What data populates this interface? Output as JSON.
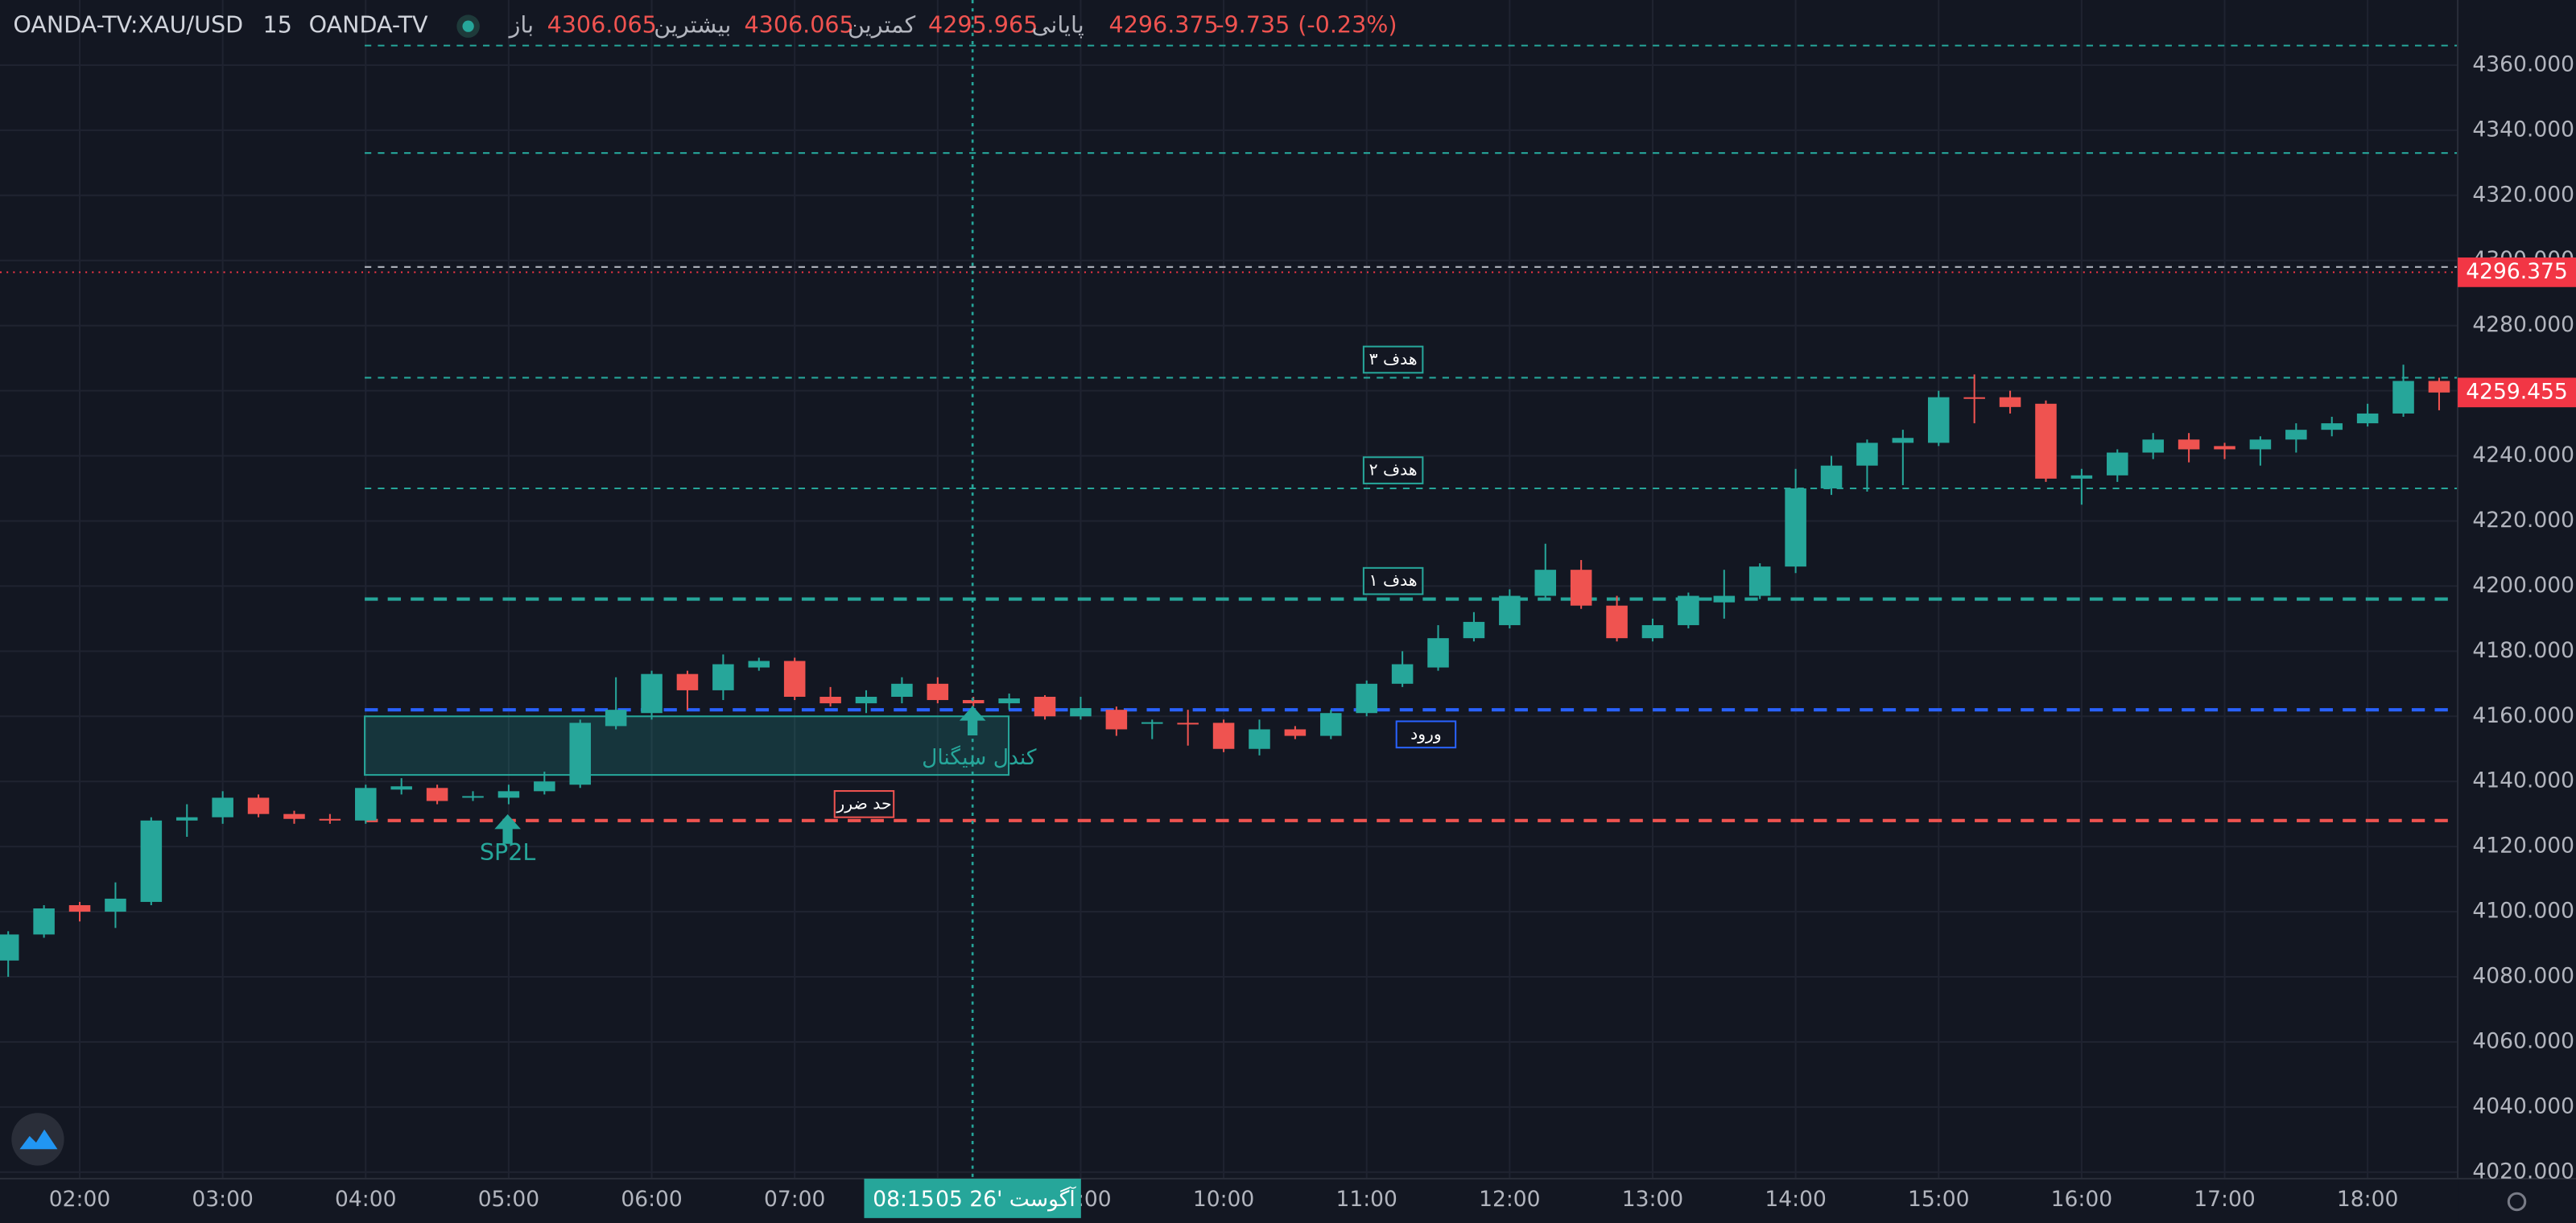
{
  "chart_data": {
    "type": "candlestick",
    "symbol": "OANDA-TV:XAU/USD",
    "interval": "15",
    "source": "OANDA-TV",
    "fields": [
      {
        "label": "باز",
        "value": 4306.065
      },
      {
        "label": "بیشترین",
        "value": 4306.065
      },
      {
        "label": "کمترین",
        "value": 4295.965
      },
      {
        "label": "پایانی",
        "value": 4296.375
      }
    ],
    "change": -9.735,
    "change_pct": {
      "value": -0.23,
      "label": "(-0.23%)"
    },
    "up_color": "#26a69a",
    "down_color": "#ef5350",
    "categories": [
      null,
      null,
      "02:00",
      null,
      null,
      null,
      "03:00",
      null,
      null,
      null,
      "04:00",
      null,
      null,
      null,
      "05:00",
      null,
      null,
      null,
      "06:00",
      null,
      null,
      null,
      "07:00",
      null,
      null,
      null,
      "08:00",
      null,
      null,
      null,
      "09:00",
      null,
      null,
      null,
      "10:00",
      null,
      null,
      null,
      "11:00",
      null,
      null,
      null,
      "12:00",
      null,
      null,
      null,
      "13:00",
      null,
      null,
      null,
      "14:00",
      null,
      null,
      null,
      "15:00",
      null,
      null,
      null,
      "16:00",
      null,
      null,
      null,
      "17:00",
      null,
      null,
      null,
      "18:00",
      null,
      null
    ],
    "open": [
      4085,
      4093,
      4102,
      4100,
      4103,
      4128,
      4129,
      4135,
      4130,
      4128.5,
      4128,
      4137.5,
      4138,
      4135,
      4135,
      4137,
      4139,
      4157,
      4161,
      4173,
      4168,
      4175,
      4177,
      4166,
      4164,
      4166,
      4170,
      4165,
      4164,
      4166,
      4160,
      4162,
      4158,
      4158,
      4158,
      4150,
      4156,
      4154,
      4161,
      4170,
      4175,
      4184,
      4188,
      4197,
      4205,
      4194,
      4184,
      4188,
      4195,
      4197,
      4206,
      4230,
      4237,
      4244,
      4244,
      4258,
      4258,
      4256,
      4233,
      4234,
      4241,
      4245,
      4243,
      4242,
      4245,
      4248,
      4250,
      4253,
      4263
    ],
    "high": [
      4094,
      4102,
      4103,
      4109,
      4129,
      4133,
      4137,
      4136,
      4131,
      4130,
      4139,
      4141,
      4139,
      4137,
      4139,
      4143,
      4159,
      4172,
      4174,
      4174,
      4179,
      4178,
      4178,
      4169,
      4168,
      4172,
      4172,
      4166,
      4167,
      4166.5,
      4166,
      4163,
      4159,
      4162,
      4159,
      4159,
      4157,
      4162,
      4171,
      4180,
      4188,
      4192,
      4199,
      4213,
      4208,
      4197,
      4190,
      4198,
      4205,
      4207,
      4236,
      4240,
      4245,
      4248,
      4260,
      4265,
      4260,
      4257,
      4236,
      4242,
      4247,
      4247,
      4244,
      4246,
      4250,
      4252,
      4256,
      4268,
      4264
    ],
    "low": [
      4080,
      4092,
      4097,
      4095,
      4102,
      4123,
      4127,
      4129,
      4127,
      4127,
      4127,
      4136,
      4133,
      4134,
      4133,
      4136,
      4138,
      4156,
      4159,
      4162,
      4165,
      4174,
      4165,
      4163,
      4161,
      4164,
      4164,
      4163,
      4162,
      4159,
      4159,
      4154,
      4153,
      4151,
      4149,
      4148,
      4153,
      4153,
      4160,
      4169,
      4174,
      4183,
      4187,
      4196,
      4193,
      4183,
      4183,
      4187,
      4190,
      4196,
      4204,
      4228,
      4229,
      4231,
      4243,
      4250,
      4253,
      4232,
      4225,
      4232,
      4239,
      4238,
      4239,
      4237,
      4241,
      4246,
      4249,
      4252,
      4254
    ],
    "close": [
      4093,
      4101,
      4100,
      4104,
      4128,
      4129,
      4135,
      4130,
      4128.5,
      4128.2,
      4138,
      4138.5,
      4134,
      4135.5,
      4137,
      4140,
      4158,
      4162,
      4173,
      4168,
      4176,
      4177,
      4166,
      4164,
      4166,
      4170,
      4165,
      4164,
      4165.5,
      4160,
      4162.5,
      4156,
      4158.2,
      4157.5,
      4150,
      4156,
      4154,
      4161,
      4170,
      4176,
      4184,
      4189,
      4197,
      4205,
      4194,
      4184,
      4188,
      4197,
      4197,
      4206,
      4230,
      4237,
      4244,
      4245.5,
      4258,
      4257.5,
      4255,
      4233,
      4234,
      4241,
      4245,
      4242,
      4242,
      4245,
      4248,
      4250,
      4253,
      4263,
      4259.455
    ],
    "ylim": [
      4018,
      4380
    ],
    "yticks": [
      {
        "value": 4020,
        "label": "4020.000"
      },
      {
        "value": 4040,
        "label": "4040.000"
      },
      {
        "value": 4060,
        "label": "4060.000"
      },
      {
        "value": 4080,
        "label": "4080.000"
      },
      {
        "value": 4100,
        "label": "4100.000"
      },
      {
        "value": 4120,
        "label": "4120.000"
      },
      {
        "value": 4140,
        "label": "4140.000"
      },
      {
        "value": 4160,
        "label": "4160.000"
      },
      {
        "value": 4180,
        "label": "4180.000"
      },
      {
        "value": 4200,
        "label": "4200.000"
      },
      {
        "value": 4220,
        "label": "4220.000"
      },
      {
        "value": 4240,
        "label": "4240.000"
      },
      {
        "value": 4260,
        "label": "4260.000"
      },
      {
        "value": 4280,
        "label": "4280.000"
      },
      {
        "value": 4300,
        "label": "4300.000"
      },
      {
        "value": 4320,
        "label": "4320.000"
      },
      {
        "value": 4340,
        "label": "4340.000"
      },
      {
        "value": 4360,
        "label": "4360.000"
      }
    ],
    "grid": true,
    "levels": [
      {
        "value": 4366,
        "color": "#26a69a"
      },
      {
        "value": 4333,
        "color": "#26a69a"
      },
      {
        "value": 4298,
        "color": "#b2b5be"
      },
      {
        "value": 4264,
        "color": "#26a69a",
        "label": "هدف ۳"
      },
      {
        "value": 4230,
        "color": "#26a69a",
        "label": "هدف ۲"
      },
      {
        "value": 4196,
        "color": "#26a69a",
        "label": "هدف ۱"
      },
      {
        "value": 4162,
        "color": "#2962ff",
        "label": "ورود"
      },
      {
        "value": 4128,
        "color": "#ef5350",
        "label": "حد ضرر"
      }
    ],
    "zone": {
      "top": 4160,
      "bottom": 4142,
      "label": "کندل سیگنال"
    },
    "signal": "SP2L",
    "price_labels": [
      {
        "value": 4296.375,
        "color": "#f23645"
      },
      {
        "value": 4259.455,
        "color": "#f23645"
      }
    ],
    "crosshair": {
      "date": "05 آگوست '26",
      "time": "08:15"
    }
  }
}
